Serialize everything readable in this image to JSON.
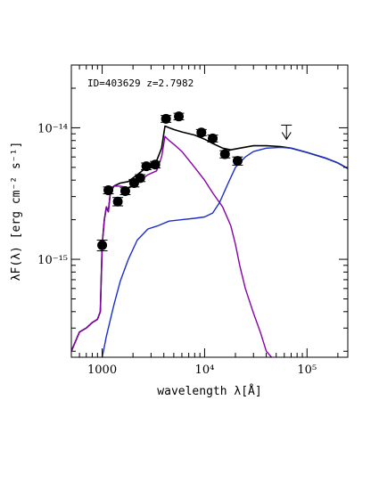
{
  "chart_data": {
    "type": "line",
    "title": "",
    "annotation": "ID=403629 z=2.7982",
    "xlabel": "wavelength λ[Å]",
    "ylabel": "λF(λ) [erg cm⁻² s⁻¹]",
    "x_scale": "log",
    "y_scale": "log",
    "xlim": [
      500,
      250000
    ],
    "ylim": [
      1.8e-16,
      3e-14
    ],
    "x_ticks": [
      {
        "value": 1000,
        "label": "1000"
      },
      {
        "value": 10000,
        "label": "10⁴"
      },
      {
        "value": 100000,
        "label": "10⁵"
      }
    ],
    "y_ticks": [
      {
        "value": 1e-15,
        "label": "10⁻¹⁵"
      },
      {
        "value": 1e-14,
        "label": "10⁻¹⁴"
      }
    ],
    "series": [
      {
        "color": "#000000",
        "x": [
          500,
          600,
          700,
          800,
          900,
          960,
          1000,
          1050,
          1100,
          1150,
          1200,
          1300,
          1500,
          1800,
          2200,
          2800,
          3400,
          3800,
          4100,
          4500,
          5000,
          6000,
          8000,
          10000,
          12000,
          15000,
          18000,
          22000,
          30000,
          40000,
          55000,
          70000,
          100000,
          150000,
          200000,
          250000
        ],
        "y": [
          2e-16,
          2.8e-16,
          3e-16,
          3.3e-16,
          3.5e-16,
          4e-16,
          1.3e-15,
          2e-15,
          2.5e-15,
          2.3e-15,
          3.2e-15,
          3.6e-15,
          3.8e-15,
          3.9e-15,
          4.4e-15,
          5.1e-15,
          5.6e-15,
          7e-15,
          1.03e-14,
          1e-14,
          9.7e-15,
          9.3e-15,
          8.8e-15,
          8.2e-15,
          7.6e-15,
          7e-15,
          6.8e-15,
          7e-15,
          7.3e-15,
          7.3e-15,
          7.2e-15,
          7e-15,
          6.5e-15,
          5.9e-15,
          5.4e-15,
          4.9e-15
        ]
      },
      {
        "color": "#8800aa",
        "x": [
          500,
          600,
          700,
          800,
          900,
          960,
          1000,
          1050,
          1100,
          1150,
          1200,
          1300,
          1500,
          1800,
          2200,
          2800,
          3400,
          3800,
          4100,
          4500,
          5000,
          6000,
          8000,
          10000,
          12000,
          15000,
          18000,
          20000,
          22000,
          25000,
          30000,
          35000,
          40000,
          45000
        ],
        "y": [
          2e-16,
          2.8e-16,
          3e-16,
          3.3e-16,
          3.5e-16,
          4e-16,
          1.3e-15,
          2e-15,
          2.5e-15,
          2.3e-15,
          3.2e-15,
          3.6e-15,
          3.6e-15,
          3.5e-15,
          3.8e-15,
          4.4e-15,
          4.7e-15,
          6e-15,
          8.6e-15,
          8e-15,
          7.5e-15,
          6.6e-15,
          5e-15,
          4e-15,
          3.2e-15,
          2.5e-15,
          1.8e-15,
          1.3e-15,
          9e-16,
          6e-16,
          3.9e-16,
          2.8e-16,
          2e-16,
          1.8e-16
        ]
      },
      {
        "color": "#1a2ecc",
        "x": [
          1000,
          1100,
          1300,
          1500,
          1800,
          2200,
          2800,
          3500,
          4500,
          6000,
          8000,
          10000,
          12000,
          14000,
          17000,
          20000,
          25000,
          30000,
          40000,
          55000,
          70000,
          100000,
          150000,
          200000,
          250000
        ],
        "y": [
          1.8e-16,
          2.6e-16,
          4.5e-16,
          6.8e-16,
          1e-15,
          1.4e-15,
          1.7e-15,
          1.8e-15,
          1.95e-15,
          2e-15,
          2.05e-15,
          2.1e-15,
          2.25e-15,
          2.7e-15,
          3.8e-15,
          5e-15,
          6e-15,
          6.6e-15,
          7e-15,
          7.1e-15,
          7e-15,
          6.5e-15,
          5.9e-15,
          5.4e-15,
          4.9e-15
        ]
      }
    ],
    "points": [
      {
        "x": 1000,
        "y": 1.28e-15,
        "err": 1.2e-16
      },
      {
        "x": 1150,
        "y": 3.35e-15,
        "err": 2e-16
      },
      {
        "x": 1420,
        "y": 2.75e-15,
        "err": 2e-16
      },
      {
        "x": 1680,
        "y": 3.3e-15,
        "err": 2e-16
      },
      {
        "x": 2050,
        "y": 3.8e-15,
        "err": 2.5e-16
      },
      {
        "x": 2350,
        "y": 4.15e-15,
        "err": 2.5e-16
      },
      {
        "x": 2700,
        "y": 5.1e-15,
        "err": 3e-16
      },
      {
        "x": 3300,
        "y": 5.25e-15,
        "err": 3e-16
      },
      {
        "x": 4200,
        "y": 1.17e-14,
        "err": 7e-16
      },
      {
        "x": 5600,
        "y": 1.22e-14,
        "err": 7e-16
      },
      {
        "x": 9300,
        "y": 9.2e-15,
        "err": 5e-16
      },
      {
        "x": 12000,
        "y": 8.3e-15,
        "err": 5e-16
      },
      {
        "x": 15800,
        "y": 6.3e-15,
        "err": 4e-16
      },
      {
        "x": 21000,
        "y": 5.6e-15,
        "err": 4e-16
      }
    ],
    "upper_limits": [
      {
        "x": 63000,
        "y": 1e-14
      }
    ]
  }
}
